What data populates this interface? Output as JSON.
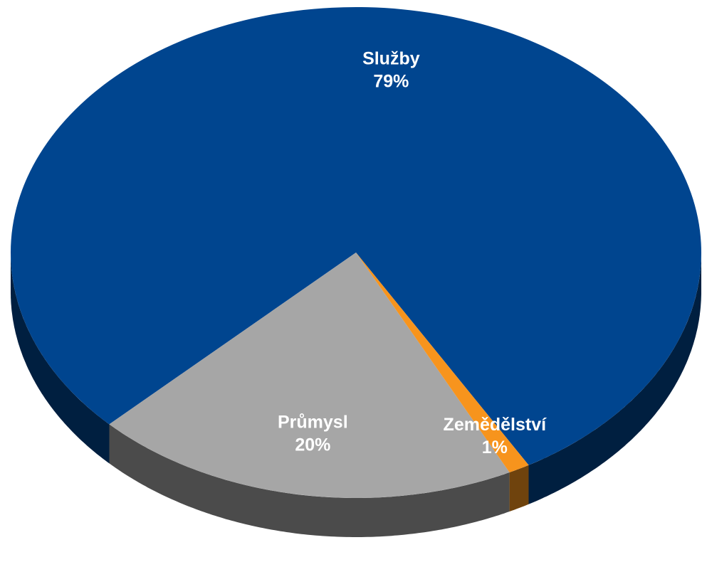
{
  "chart_data": {
    "type": "pie",
    "categories": [
      "Služby",
      "Průmysl",
      "Zemědělství"
    ],
    "values": [
      79,
      20,
      1
    ],
    "value_labels": [
      "79%",
      "20%",
      "1%"
    ],
    "colors": [
      "#00458f",
      "#a6a6a6",
      "#f7941d"
    ]
  }
}
